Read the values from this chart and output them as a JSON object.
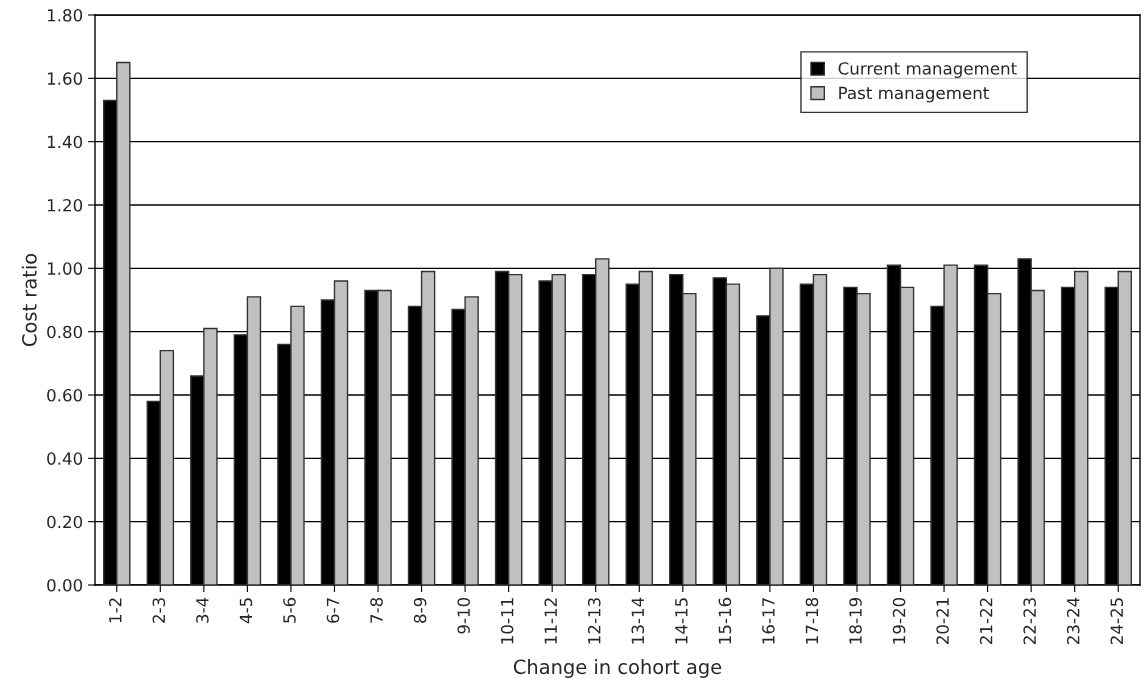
{
  "chart_data": {
    "type": "bar",
    "xlabel": "Change in cohort age",
    "ylabel": "Cost ratio",
    "categories": [
      "1-2",
      "2-3",
      "3-4",
      "4-5",
      "5-6",
      "6-7",
      "7-8",
      "8-9",
      "9-10",
      "10-11",
      "11-12",
      "12-13",
      "13-14",
      "14-15",
      "15-16",
      "16-17",
      "17-18",
      "18-19",
      "19-20",
      "20-21",
      "21-22",
      "22-23",
      "23-24",
      "24-25"
    ],
    "series": [
      {
        "name": "Current management",
        "color": "#000000",
        "values": [
          1.53,
          0.58,
          0.66,
          0.79,
          0.76,
          0.9,
          0.93,
          0.88,
          0.87,
          0.99,
          0.96,
          0.98,
          0.95,
          0.98,
          0.97,
          0.85,
          0.95,
          0.94,
          1.01,
          0.88,
          1.01,
          1.03,
          0.94,
          0.94
        ]
      },
      {
        "name": "Past management",
        "color": "#c0c0c0",
        "values": [
          1.65,
          0.74,
          0.81,
          0.91,
          0.88,
          0.96,
          0.93,
          0.99,
          0.91,
          0.98,
          0.98,
          1.03,
          0.99,
          0.92,
          0.95,
          1.0,
          0.98,
          0.92,
          0.94,
          1.01,
          0.92,
          0.93,
          0.99,
          0.99
        ]
      }
    ],
    "ylim": [
      0,
      1.8
    ],
    "yticks": [
      {
        "value": 0,
        "label": "0.00"
      },
      {
        "value": 0.2,
        "label": "0.20"
      },
      {
        "value": 0.4,
        "label": "0.40"
      },
      {
        "value": 0.6,
        "label": "0.60"
      },
      {
        "value": 0.8,
        "label": "0.80"
      },
      {
        "value": 1.0,
        "label": "1.00"
      },
      {
        "value": 1.2,
        "label": "1.20"
      },
      {
        "value": 1.4,
        "label": "1.40"
      },
      {
        "value": 1.6,
        "label": "1.60"
      },
      {
        "value": 1.8,
        "label": "1.80"
      }
    ],
    "grid": "y",
    "legend": "top right"
  }
}
